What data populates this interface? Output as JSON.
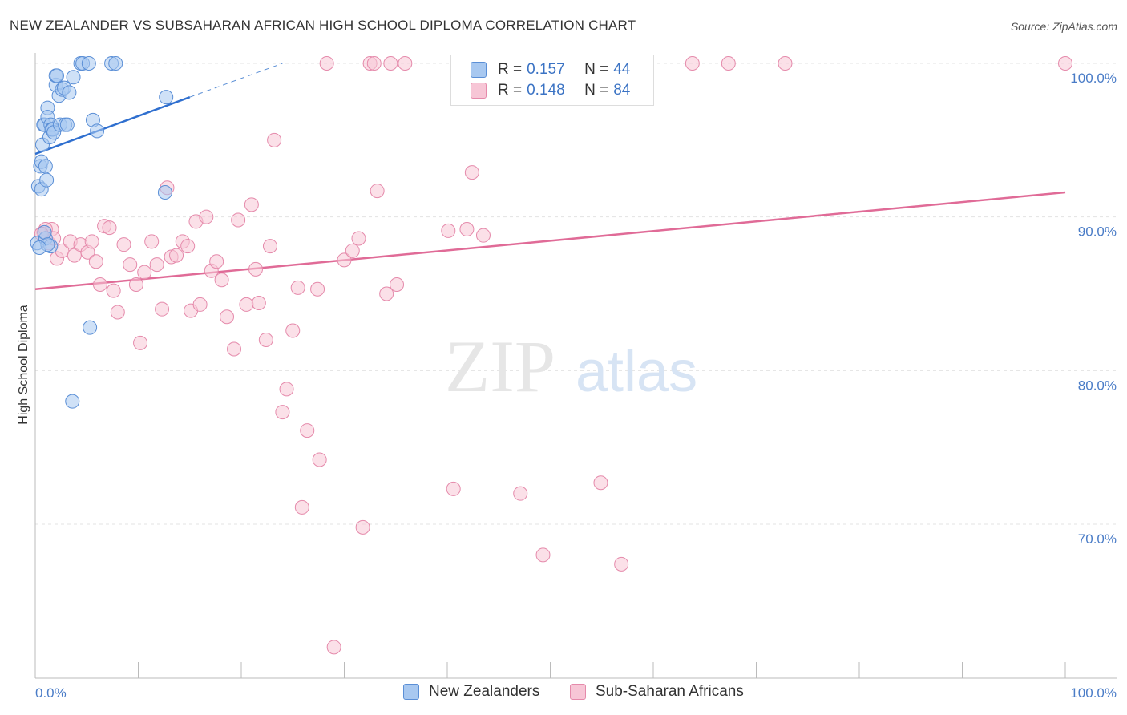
{
  "title": "NEW ZEALANDER VS SUBSAHARAN AFRICAN HIGH SCHOOL DIPLOMA CORRELATION CHART",
  "source": "Source: ZipAtlas.com",
  "watermark": {
    "zip": "ZIP",
    "atlas": "atlas"
  },
  "legend": {
    "rows": [
      {
        "r_label": "R =",
        "r_value": "0.157",
        "n_label": "N =",
        "n_value": "44"
      },
      {
        "r_label": "R =",
        "r_value": "0.148",
        "n_label": "N =",
        "n_value": "84"
      }
    ]
  },
  "bottom_legend": [
    "New Zealanders",
    "Sub-Saharan Africans"
  ],
  "colors": {
    "blue_fill": "#a8c8f0",
    "blue_stroke": "#5b8fd6",
    "blue_line": "#2f6fcf",
    "pink_fill": "#f7c6d6",
    "pink_stroke": "#e58aab",
    "pink_line": "#e06b97",
    "tick_text": "#4a7cc7",
    "grid": "#e3e3e3"
  },
  "chart_data": {
    "type": "scatter",
    "ylabel": "High School Diploma",
    "xlabel": "",
    "x_tick_labels": [
      "0.0%",
      "100.0%"
    ],
    "y_tick_labels": [
      "100.0%",
      "90.0%",
      "80.0%",
      "70.0%"
    ],
    "y_ticks": [
      100,
      90,
      80,
      70
    ],
    "xlim": [
      0,
      105
    ],
    "ylim": [
      61,
      101.3
    ],
    "grid": true,
    "series": [
      {
        "name": "New Zealanders",
        "color": "#5b8fd6",
        "points": [
          [
            0.2,
            88.3
          ],
          [
            0.3,
            92.0
          ],
          [
            0.5,
            93.3
          ],
          [
            0.6,
            93.6
          ],
          [
            0.6,
            91.8
          ],
          [
            0.7,
            94.7
          ],
          [
            0.8,
            96.0
          ],
          [
            0.9,
            96.0
          ],
          [
            1.0,
            88.6
          ],
          [
            1.0,
            93.3
          ],
          [
            1.1,
            92.4
          ],
          [
            1.2,
            97.1
          ],
          [
            1.2,
            96.5
          ],
          [
            1.4,
            95.2
          ],
          [
            1.5,
            96.0
          ],
          [
            1.5,
            88.1
          ],
          [
            1.6,
            95.7
          ],
          [
            1.7,
            95.7
          ],
          [
            1.8,
            95.5
          ],
          [
            2.0,
            98.6
          ],
          [
            2.0,
            99.2
          ],
          [
            2.1,
            99.2
          ],
          [
            2.3,
            97.9
          ],
          [
            2.4,
            96.0
          ],
          [
            2.6,
            98.3
          ],
          [
            2.8,
            98.4
          ],
          [
            2.9,
            96.0
          ],
          [
            3.1,
            96.0
          ],
          [
            3.3,
            98.1
          ],
          [
            3.6,
            78.0
          ],
          [
            3.7,
            99.1
          ],
          [
            4.4,
            100.0
          ],
          [
            4.6,
            100.0
          ],
          [
            5.2,
            100.0
          ],
          [
            5.3,
            82.8
          ],
          [
            5.6,
            96.3
          ],
          [
            6.0,
            95.6
          ],
          [
            7.4,
            100.0
          ],
          [
            7.8,
            100.0
          ],
          [
            12.6,
            91.6
          ],
          [
            12.7,
            97.8
          ],
          [
            0.9,
            89.0
          ],
          [
            1.2,
            88.2
          ],
          [
            0.4,
            88.0
          ]
        ],
        "trend": {
          "x": [
            0,
            15
          ],
          "y": [
            94.1,
            97.8
          ]
        },
        "trend_extension": {
          "x": [
            15,
            24
          ],
          "y": [
            97.8,
            100.0
          ]
        }
      },
      {
        "name": "Sub-Saharan Africans",
        "color": "#e58aab",
        "points": [
          [
            0.8,
            89.0
          ],
          [
            1.3,
            88.3
          ],
          [
            1.6,
            89.2
          ],
          [
            1.8,
            88.6
          ],
          [
            2.1,
            87.3
          ],
          [
            2.6,
            87.8
          ],
          [
            3.4,
            88.4
          ],
          [
            3.8,
            87.5
          ],
          [
            4.4,
            88.2
          ],
          [
            5.1,
            87.7
          ],
          [
            5.5,
            88.4
          ],
          [
            5.9,
            87.1
          ],
          [
            6.3,
            85.6
          ],
          [
            6.7,
            89.4
          ],
          [
            7.2,
            89.3
          ],
          [
            7.6,
            85.2
          ],
          [
            8.0,
            83.8
          ],
          [
            8.6,
            88.2
          ],
          [
            9.2,
            86.9
          ],
          [
            9.8,
            85.6
          ],
          [
            10.2,
            81.8
          ],
          [
            10.6,
            86.4
          ],
          [
            11.3,
            88.4
          ],
          [
            11.8,
            86.9
          ],
          [
            12.3,
            84.0
          ],
          [
            12.8,
            91.9
          ],
          [
            13.2,
            87.4
          ],
          [
            13.7,
            87.5
          ],
          [
            14.3,
            88.4
          ],
          [
            14.8,
            88.1
          ],
          [
            15.1,
            83.9
          ],
          [
            15.6,
            89.7
          ],
          [
            16.0,
            84.3
          ],
          [
            16.6,
            90.0
          ],
          [
            17.1,
            86.5
          ],
          [
            17.6,
            87.1
          ],
          [
            18.1,
            85.9
          ],
          [
            18.6,
            83.5
          ],
          [
            19.3,
            81.4
          ],
          [
            19.7,
            89.8
          ],
          [
            20.5,
            84.3
          ],
          [
            21.0,
            90.8
          ],
          [
            21.4,
            86.6
          ],
          [
            21.7,
            84.4
          ],
          [
            22.4,
            82.0
          ],
          [
            22.8,
            88.1
          ],
          [
            23.2,
            95.0
          ],
          [
            24.0,
            77.3
          ],
          [
            24.4,
            78.8
          ],
          [
            25.0,
            82.6
          ],
          [
            25.5,
            85.4
          ],
          [
            25.9,
            71.1
          ],
          [
            26.4,
            76.1
          ],
          [
            27.4,
            85.3
          ],
          [
            27.6,
            74.2
          ],
          [
            28.3,
            100.0
          ],
          [
            29.0,
            62.0
          ],
          [
            30.0,
            87.2
          ],
          [
            30.8,
            87.8
          ],
          [
            31.4,
            88.6
          ],
          [
            31.8,
            69.8
          ],
          [
            32.5,
            100.0
          ],
          [
            32.9,
            100.0
          ],
          [
            33.2,
            91.7
          ],
          [
            34.1,
            85.0
          ],
          [
            34.5,
            100.0
          ],
          [
            35.1,
            85.6
          ],
          [
            35.9,
            100.0
          ],
          [
            40.1,
            89.1
          ],
          [
            40.6,
            72.3
          ],
          [
            41.9,
            89.2
          ],
          [
            42.4,
            92.9
          ],
          [
            43.5,
            88.8
          ],
          [
            47.1,
            72.0
          ],
          [
            49.3,
            68.0
          ],
          [
            52.1,
            100.0
          ],
          [
            54.9,
            72.7
          ],
          [
            56.9,
            67.4
          ],
          [
            63.8,
            100.0
          ],
          [
            67.3,
            100.0
          ],
          [
            72.8,
            100.0
          ],
          [
            1.0,
            89.2
          ],
          [
            100.0,
            100.0
          ],
          [
            0.6,
            88.9
          ]
        ],
        "trend": {
          "x": [
            0,
            100
          ],
          "y": [
            85.3,
            91.6
          ]
        }
      }
    ]
  }
}
